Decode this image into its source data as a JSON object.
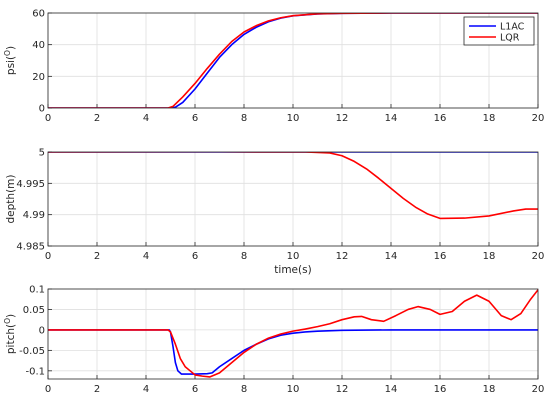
{
  "chart_data": [
    {
      "type": "line",
      "ylabel": "psi(",
      "ylabel_sup": "O",
      "ylabel_close": ")",
      "xlabel": "",
      "xlim": [
        0,
        20
      ],
      "ylim": [
        0,
        60
      ],
      "xticks": [
        "0",
        "2",
        "4",
        "6",
        "8",
        "10",
        "12",
        "14",
        "16",
        "18",
        "20"
      ],
      "yticks": [
        "0",
        "20",
        "40",
        "60"
      ],
      "grid": true,
      "legend": "top-right",
      "series": [
        {
          "name": "L1AC",
          "color": "#0000FF",
          "x": [
            0,
            5.0,
            5.2,
            5.5,
            6.0,
            6.5,
            7.0,
            7.5,
            8.0,
            8.5,
            9.0,
            9.5,
            10.0,
            11.0,
            12.0,
            14.0,
            20.0
          ],
          "y": [
            0,
            0,
            0.5,
            3.5,
            12,
            22,
            32,
            40,
            46.5,
            51,
            54.5,
            56.8,
            58.2,
            59.4,
            59.8,
            60,
            60
          ]
        },
        {
          "name": "LQR",
          "color": "#FF0000",
          "x": [
            0,
            4.9,
            5.1,
            5.5,
            6.0,
            6.5,
            7.0,
            7.5,
            8.0,
            8.5,
            9.0,
            9.5,
            10.0,
            11.0,
            12.0,
            14.0,
            20.0
          ],
          "y": [
            0,
            0,
            1,
            7,
            15.5,
            25,
            34,
            42,
            48,
            52,
            55,
            57,
            58.3,
            59.5,
            59.8,
            60,
            60
          ]
        }
      ]
    },
    {
      "type": "line",
      "ylabel": "depth(m)",
      "xlabel": "time(s)",
      "xlim": [
        0,
        20
      ],
      "ylim": [
        4.985,
        5.0
      ],
      "xticks": [
        "0",
        "2",
        "4",
        "6",
        "8",
        "10",
        "12",
        "14",
        "16",
        "18",
        "20"
      ],
      "yticks": [
        "4.985",
        "4.99",
        "4.995",
        "5"
      ],
      "grid": true,
      "series": [
        {
          "name": "L1AC",
          "color": "#0000FF",
          "x": [
            0,
            20
          ],
          "y": [
            5.0,
            5.0
          ]
        },
        {
          "name": "LQR",
          "color": "#FF0000",
          "x": [
            0,
            7,
            9,
            10.5,
            11.5,
            12.0,
            12.5,
            13.0,
            13.5,
            14.0,
            14.5,
            15.0,
            15.5,
            16.0,
            17.0,
            18.0,
            19.0,
            19.5,
            20.0
          ],
          "y": [
            5.0,
            5.00005,
            5.0,
            5.0,
            4.99985,
            4.9994,
            4.9985,
            4.9973,
            4.9958,
            4.9942,
            4.9926,
            4.9912,
            4.9901,
            4.9894,
            4.98945,
            4.9898,
            4.9906,
            4.9909,
            4.9909
          ]
        }
      ]
    },
    {
      "type": "line",
      "ylabel": "pitch(",
      "ylabel_sup": "O",
      "ylabel_close": ")",
      "xlabel": "",
      "xlim": [
        0,
        20
      ],
      "ylim": [
        -0.12,
        0.1
      ],
      "xticks": [
        "0",
        "2",
        "4",
        "6",
        "8",
        "10",
        "12",
        "14",
        "16",
        "18",
        "20"
      ],
      "yticks": [
        "-0.1",
        "-0.05",
        "0",
        "0.05",
        "0.1"
      ],
      "grid": true,
      "series": [
        {
          "name": "L1AC",
          "color": "#0000FF",
          "x": [
            0,
            4.95,
            5.0,
            5.1,
            5.2,
            5.3,
            5.45,
            6.0,
            6.5,
            6.7,
            7.0,
            7.5,
            8.0,
            8.5,
            9.0,
            9.5,
            10.0,
            10.5,
            11.0,
            12.0,
            14.0,
            20.0
          ],
          "y": [
            0,
            0,
            -0.005,
            -0.04,
            -0.08,
            -0.1,
            -0.108,
            -0.108,
            -0.107,
            -0.105,
            -0.09,
            -0.07,
            -0.05,
            -0.035,
            -0.022,
            -0.013,
            -0.008,
            -0.005,
            -0.003,
            -0.001,
            0,
            0
          ]
        },
        {
          "name": "LQR",
          "color": "#FF0000",
          "x": [
            0,
            4.9,
            5.0,
            5.2,
            5.4,
            5.6,
            5.8,
            6.0,
            6.3,
            6.6,
            7.0,
            7.5,
            8.0,
            8.5,
            9.0,
            9.5,
            10.0,
            10.5,
            11.0,
            11.5,
            12.0,
            12.5,
            12.8,
            13.2,
            13.7,
            14.2,
            14.7,
            15.1,
            15.6,
            16.0,
            16.5,
            17.0,
            17.5,
            18.0,
            18.5,
            18.9,
            19.3,
            19.7,
            20.0
          ],
          "y": [
            0,
            0,
            -0.005,
            -0.035,
            -0.07,
            -0.09,
            -0.1,
            -0.11,
            -0.113,
            -0.115,
            -0.105,
            -0.08,
            -0.055,
            -0.035,
            -0.02,
            -0.01,
            -0.003,
            0.002,
            0.008,
            0.015,
            0.025,
            0.032,
            0.033,
            0.025,
            0.021,
            0.035,
            0.05,
            0.057,
            0.05,
            0.038,
            0.045,
            0.07,
            0.085,
            0.07,
            0.035,
            0.025,
            0.04,
            0.075,
            0.098
          ]
        }
      ]
    }
  ]
}
